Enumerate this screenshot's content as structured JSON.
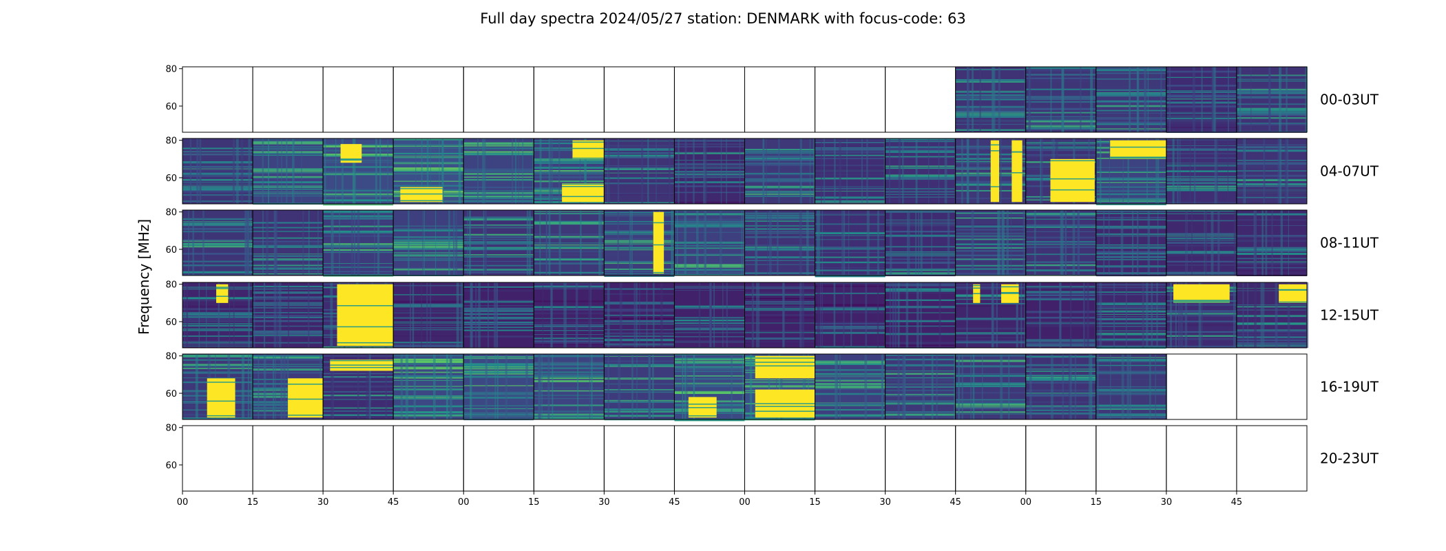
{
  "chart_data": {
    "type": "heatmap",
    "title": "Full day spectra 2024/05/27 station: DENMARK with focus-code: 63",
    "ylabel": "Frequency [MHz]",
    "ylim": [
      46,
      81
    ],
    "y_ticks": [
      "60",
      "80"
    ],
    "x_ticks": [
      "00",
      "15",
      "30",
      "45",
      "00",
      "15",
      "30",
      "45",
      "00",
      "15",
      "30",
      "45",
      "00",
      "15",
      "30",
      "45"
    ],
    "panels_per_row": 16,
    "minutes_per_panel": 15,
    "rows": [
      {
        "label": "00-03UT",
        "panels": [
          {
            "has_data": false
          },
          {
            "has_data": false
          },
          {
            "has_data": false
          },
          {
            "has_data": false
          },
          {
            "has_data": false
          },
          {
            "has_data": false
          },
          {
            "has_data": false
          },
          {
            "has_data": false
          },
          {
            "has_data": false
          },
          {
            "has_data": false
          },
          {
            "has_data": false
          },
          {
            "has_data": true,
            "intensity": 0.3,
            "bursts": []
          },
          {
            "has_data": true,
            "intensity": 0.32,
            "bursts": []
          },
          {
            "has_data": true,
            "intensity": 0.34,
            "bursts": []
          },
          {
            "has_data": true,
            "intensity": 0.26,
            "bursts": []
          },
          {
            "has_data": true,
            "intensity": 0.3,
            "bursts": []
          }
        ]
      },
      {
        "label": "04-07UT",
        "panels": [
          {
            "has_data": true,
            "intensity": 0.32,
            "bursts": []
          },
          {
            "has_data": true,
            "intensity": 0.4,
            "bursts": []
          },
          {
            "has_data": true,
            "intensity": 0.45,
            "bursts": [
              {
                "t0": 0.25,
                "t1": 0.55,
                "f0": 68,
                "f1": 78
              }
            ]
          },
          {
            "has_data": true,
            "intensity": 0.48,
            "bursts": [
              {
                "t0": 0.1,
                "t1": 0.7,
                "f0": 47,
                "f1": 55
              }
            ]
          },
          {
            "has_data": true,
            "intensity": 0.4,
            "bursts": []
          },
          {
            "has_data": true,
            "intensity": 0.38,
            "bursts": [
              {
                "t0": 0.55,
                "t1": 1.0,
                "f0": 70,
                "f1": 80
              },
              {
                "t0": 0.4,
                "t1": 1.0,
                "f0": 47,
                "f1": 57
              }
            ]
          },
          {
            "has_data": true,
            "intensity": 0.3,
            "bursts": []
          },
          {
            "has_data": true,
            "intensity": 0.24,
            "bursts": []
          },
          {
            "has_data": true,
            "intensity": 0.34,
            "bursts": []
          },
          {
            "has_data": true,
            "intensity": 0.28,
            "bursts": []
          },
          {
            "has_data": true,
            "intensity": 0.28,
            "bursts": []
          },
          {
            "has_data": true,
            "intensity": 0.34,
            "bursts": [
              {
                "t0": 0.5,
                "t1": 0.62,
                "f0": 47,
                "f1": 80
              },
              {
                "t0": 0.8,
                "t1": 0.95,
                "f0": 47,
                "f1": 80
              }
            ]
          },
          {
            "has_data": true,
            "intensity": 0.3,
            "bursts": [
              {
                "t0": 0.35,
                "t1": 0.98,
                "f0": 47,
                "f1": 70
              }
            ]
          },
          {
            "has_data": true,
            "intensity": 0.4,
            "bursts": [
              {
                "t0": 0.2,
                "t1": 1.0,
                "f0": 70,
                "f1": 80
              }
            ]
          },
          {
            "has_data": true,
            "intensity": 0.28,
            "bursts": []
          },
          {
            "has_data": true,
            "intensity": 0.3,
            "bursts": []
          }
        ]
      },
      {
        "label": "08-11UT",
        "panels": [
          {
            "has_data": true,
            "intensity": 0.32,
            "bursts": []
          },
          {
            "has_data": true,
            "intensity": 0.3,
            "bursts": []
          },
          {
            "has_data": true,
            "intensity": 0.36,
            "bursts": []
          },
          {
            "has_data": true,
            "intensity": 0.38,
            "bursts": []
          },
          {
            "has_data": true,
            "intensity": 0.3,
            "bursts": []
          },
          {
            "has_data": true,
            "intensity": 0.34,
            "bursts": []
          },
          {
            "has_data": true,
            "intensity": 0.36,
            "bursts": [
              {
                "t0": 0.7,
                "t1": 0.85,
                "f0": 47,
                "f1": 80
              }
            ]
          },
          {
            "has_data": true,
            "intensity": 0.38,
            "bursts": []
          },
          {
            "has_data": true,
            "intensity": 0.3,
            "bursts": []
          },
          {
            "has_data": true,
            "intensity": 0.28,
            "bursts": []
          },
          {
            "has_data": true,
            "intensity": 0.26,
            "bursts": []
          },
          {
            "has_data": true,
            "intensity": 0.32,
            "bursts": []
          },
          {
            "has_data": true,
            "intensity": 0.3,
            "bursts": []
          },
          {
            "has_data": true,
            "intensity": 0.24,
            "bursts": []
          },
          {
            "has_data": true,
            "intensity": 0.24,
            "bursts": []
          },
          {
            "has_data": true,
            "intensity": 0.24,
            "bursts": []
          }
        ]
      },
      {
        "label": "12-15UT",
        "panels": [
          {
            "has_data": true,
            "intensity": 0.22,
            "bursts": [
              {
                "t0": 0.48,
                "t1": 0.65,
                "f0": 70,
                "f1": 80
              }
            ]
          },
          {
            "has_data": true,
            "intensity": 0.22,
            "bursts": []
          },
          {
            "has_data": true,
            "intensity": 0.26,
            "bursts": [
              {
                "t0": 0.2,
                "t1": 1.0,
                "f0": 47,
                "f1": 80
              }
            ]
          },
          {
            "has_data": true,
            "intensity": 0.22,
            "bursts": []
          },
          {
            "has_data": true,
            "intensity": 0.2,
            "bursts": []
          },
          {
            "has_data": true,
            "intensity": 0.2,
            "bursts": []
          },
          {
            "has_data": true,
            "intensity": 0.2,
            "bursts": []
          },
          {
            "has_data": true,
            "intensity": 0.2,
            "bursts": []
          },
          {
            "has_data": true,
            "intensity": 0.2,
            "bursts": []
          },
          {
            "has_data": true,
            "intensity": 0.2,
            "bursts": []
          },
          {
            "has_data": true,
            "intensity": 0.2,
            "bursts": []
          },
          {
            "has_data": true,
            "intensity": 0.22,
            "bursts": [
              {
                "t0": 0.25,
                "t1": 0.35,
                "f0": 70,
                "f1": 80
              },
              {
                "t0": 0.65,
                "t1": 0.9,
                "f0": 70,
                "f1": 80
              }
            ]
          },
          {
            "has_data": true,
            "intensity": 0.2,
            "bursts": []
          },
          {
            "has_data": true,
            "intensity": 0.24,
            "bursts": []
          },
          {
            "has_data": true,
            "intensity": 0.26,
            "bursts": [
              {
                "t0": 0.1,
                "t1": 0.9,
                "f0": 70,
                "f1": 80
              }
            ]
          },
          {
            "has_data": true,
            "intensity": 0.24,
            "bursts": [
              {
                "t0": 0.6,
                "t1": 1.0,
                "f0": 70,
                "f1": 80
              }
            ]
          }
        ]
      },
      {
        "label": "16-19UT",
        "panels": [
          {
            "has_data": true,
            "intensity": 0.34,
            "bursts": [
              {
                "t0": 0.35,
                "t1": 0.75,
                "f0": 47,
                "f1": 68
              }
            ]
          },
          {
            "has_data": true,
            "intensity": 0.36,
            "bursts": [
              {
                "t0": 0.5,
                "t1": 1.0,
                "f0": 47,
                "f1": 68
              }
            ]
          },
          {
            "has_data": true,
            "intensity": 0.26,
            "bursts": [
              {
                "t0": 0.1,
                "t1": 1.0,
                "f0": 72,
                "f1": 78
              }
            ]
          },
          {
            "has_data": true,
            "intensity": 0.44,
            "bursts": []
          },
          {
            "has_data": true,
            "intensity": 0.44,
            "bursts": []
          },
          {
            "has_data": true,
            "intensity": 0.4,
            "bursts": []
          },
          {
            "has_data": true,
            "intensity": 0.36,
            "bursts": []
          },
          {
            "has_data": true,
            "intensity": 0.44,
            "bursts": [
              {
                "t0": 0.2,
                "t1": 0.6,
                "f0": 47,
                "f1": 58
              }
            ]
          },
          {
            "has_data": true,
            "intensity": 0.48,
            "bursts": [
              {
                "t0": 0.15,
                "t1": 1.0,
                "f0": 68,
                "f1": 80
              },
              {
                "t0": 0.15,
                "t1": 1.0,
                "f0": 47,
                "f1": 62
              }
            ]
          },
          {
            "has_data": true,
            "intensity": 0.38,
            "bursts": []
          },
          {
            "has_data": true,
            "intensity": 0.34,
            "bursts": []
          },
          {
            "has_data": true,
            "intensity": 0.34,
            "bursts": []
          },
          {
            "has_data": true,
            "intensity": 0.3,
            "bursts": []
          },
          {
            "has_data": true,
            "intensity": 0.34,
            "bursts": []
          },
          {
            "has_data": false
          },
          {
            "has_data": false
          }
        ]
      },
      {
        "label": "20-23UT",
        "panels": [
          {
            "has_data": false
          },
          {
            "has_data": false
          },
          {
            "has_data": false
          },
          {
            "has_data": false
          },
          {
            "has_data": false
          },
          {
            "has_data": false
          },
          {
            "has_data": false
          },
          {
            "has_data": false
          },
          {
            "has_data": false
          },
          {
            "has_data": false
          },
          {
            "has_data": false
          },
          {
            "has_data": false
          },
          {
            "has_data": false
          },
          {
            "has_data": false
          },
          {
            "has_data": false
          },
          {
            "has_data": false
          }
        ]
      }
    ],
    "colormap": [
      "#440154",
      "#3b528b",
      "#21918c",
      "#5ec962",
      "#fde725"
    ]
  }
}
